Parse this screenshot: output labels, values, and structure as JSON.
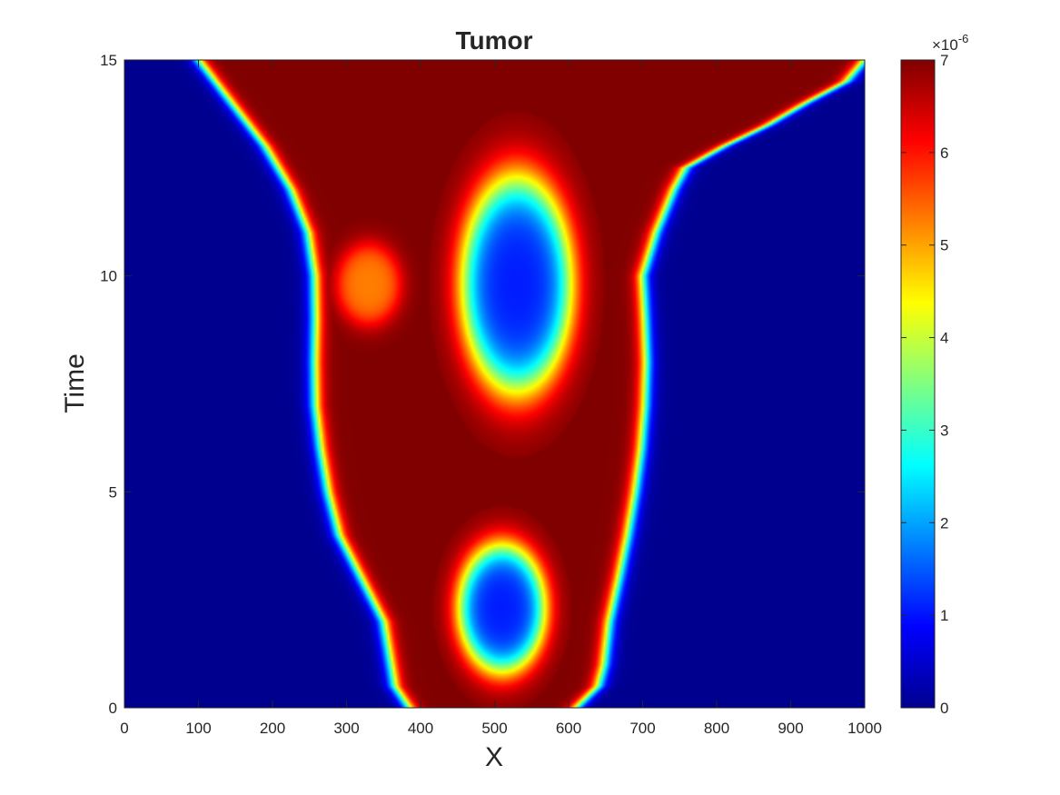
{
  "chart_data": {
    "type": "heatmap",
    "title": "Tumor",
    "xlabel": "X",
    "ylabel": "Time",
    "xlim": [
      0,
      1000
    ],
    "ylim": [
      0,
      15
    ],
    "x_ticks": [
      "0",
      "100",
      "200",
      "300",
      "400",
      "500",
      "600",
      "700",
      "800",
      "900",
      "1000"
    ],
    "y_ticks": [
      "0",
      "5",
      "10",
      "15"
    ],
    "colormap": "jet",
    "colorbar": {
      "range": [
        0,
        7
      ],
      "scale_factor": "×10",
      "scale_exponent": "-6",
      "ticks": [
        "0",
        "1",
        "2",
        "3",
        "4",
        "5",
        "6",
        "7"
      ]
    },
    "description_points": {
      "left_front": [
        {
          "t": 0,
          "x": 385
        },
        {
          "t": 0.5,
          "x": 365
        },
        {
          "t": 1,
          "x": 360
        },
        {
          "t": 2,
          "x": 350
        },
        {
          "t": 3,
          "x": 320
        },
        {
          "t": 4,
          "x": 290
        },
        {
          "t": 5,
          "x": 275
        },
        {
          "t": 6,
          "x": 265
        },
        {
          "t": 7,
          "x": 258
        },
        {
          "t": 8,
          "x": 257
        },
        {
          "t": 9,
          "x": 258
        },
        {
          "t": 10,
          "x": 257
        },
        {
          "t": 11,
          "x": 248
        },
        {
          "t": 12,
          "x": 225
        },
        {
          "t": 13,
          "x": 190
        },
        {
          "t": 14,
          "x": 145
        },
        {
          "t": 15,
          "x": 100
        }
      ],
      "right_front": [
        {
          "t": 0,
          "x": 610
        },
        {
          "t": 0.5,
          "x": 640
        },
        {
          "t": 1,
          "x": 648
        },
        {
          "t": 2,
          "x": 655
        },
        {
          "t": 3,
          "x": 668
        },
        {
          "t": 4,
          "x": 680
        },
        {
          "t": 5,
          "x": 690
        },
        {
          "t": 6,
          "x": 698
        },
        {
          "t": 7,
          "x": 703
        },
        {
          "t": 8,
          "x": 705
        },
        {
          "t": 9,
          "x": 703
        },
        {
          "t": 10,
          "x": 700
        },
        {
          "t": 11,
          "x": 718
        },
        {
          "t": 12,
          "x": 742
        },
        {
          "t": 12.5,
          "x": 758
        },
        {
          "t": 13,
          "x": 810
        },
        {
          "t": 13.5,
          "x": 870
        },
        {
          "t": 14,
          "x": 920
        },
        {
          "t": 14.5,
          "x": 975
        },
        {
          "t": 15,
          "x": 1000
        }
      ],
      "lower_hole": {
        "x_center": 510,
        "t_center": 2.3,
        "x_halfwidth": 75,
        "t_halfheight": 1.9
      },
      "upper_hole": {
        "x_center": 530,
        "t_center": 9.8,
        "x_halfwidth": 95,
        "t_halfheight": 3.2
      },
      "left_bridge": {
        "x_center": 330,
        "t_center": 9.8,
        "x_halfwidth": 60,
        "t_halfheight": 1.3
      }
    }
  }
}
